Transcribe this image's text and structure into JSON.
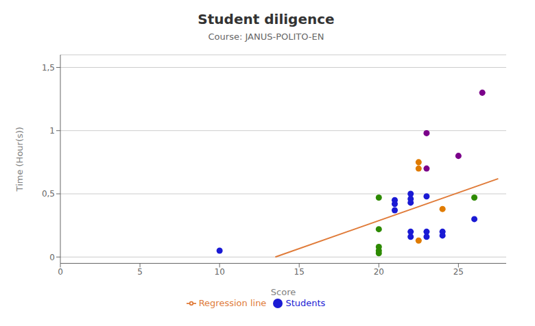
{
  "chart_data": {
    "type": "scatter",
    "title": "Student diligence",
    "subtitle": "Course: JANUS-POLITO-EN",
    "x_label": "Score",
    "y_label": "Time (Hour(s))",
    "xlim": [
      0,
      28
    ],
    "ylim": [
      -0.05,
      1.6
    ],
    "xticks": [
      0,
      5,
      10,
      15,
      20,
      25
    ],
    "yticks": [
      0,
      {
        "value": 0.5,
        "label": "0,5"
      },
      1,
      {
        "value": 1.5,
        "label": "1,5"
      }
    ],
    "grid": "y",
    "legend": "bottom",
    "series": [
      {
        "name": "Students",
        "type": "scatter",
        "marker": "circle",
        "color": "#1a1ad4",
        "x": [
          10.0,
          20.0,
          20.0,
          20.0,
          20.0,
          20.0,
          21.0,
          21.0,
          21.0,
          22.0,
          22.0,
          22.0,
          22.0,
          22.0,
          22.5,
          22.5,
          22.5,
          23.0,
          23.0,
          23.0,
          23.0,
          23.0,
          24.0,
          24.0,
          24.0,
          25.0,
          26.0,
          26.0,
          26.5
        ],
        "values": [
          0.05,
          0.47,
          0.22,
          0.08,
          0.05,
          0.03,
          0.45,
          0.42,
          0.37,
          0.5,
          0.46,
          0.43,
          0.2,
          0.16,
          0.75,
          0.7,
          0.13,
          0.7,
          0.48,
          0.2,
          0.16,
          0.98,
          0.38,
          0.2,
          0.17,
          0.8,
          0.47,
          0.3,
          1.3
        ],
        "colors": [
          "#1a1ad4",
          "#2d8a00",
          "#2d8a00",
          "#2d8a00",
          "#2d8a00",
          "#2d8a00",
          "#1a1ad4",
          "#1a1ad4",
          "#1a1ad4",
          "#1a1ad4",
          "#1a1ad4",
          "#1a1ad4",
          "#1a1ad4",
          "#1a1ad4",
          "#e07b00",
          "#e07b00",
          "#e07b00",
          "#7b008a",
          "#1a1ad4",
          "#1a1ad4",
          "#1a1ad4",
          "#7b008a",
          "#e07b00",
          "#1a1ad4",
          "#1a1ad4",
          "#7b008a",
          "#2d8a00",
          "#1a1ad4",
          "#7b008a"
        ]
      },
      {
        "name": "Regression line",
        "type": "line",
        "color": "#e07b39",
        "x": [
          13.5,
          27.5
        ],
        "values": [
          0.0,
          0.62
        ]
      }
    ]
  }
}
